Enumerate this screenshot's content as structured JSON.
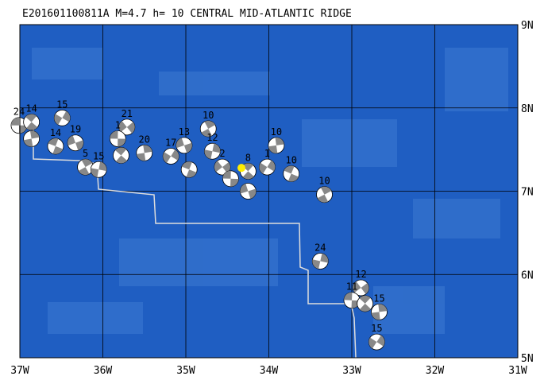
{
  "chart_data": {
    "type": "map",
    "title": "E201601100811A M=4.7 h= 10 CENTRAL MID-ATLANTIC RIDGE",
    "xlim": [
      -37,
      -31
    ],
    "ylim": [
      5,
      9
    ],
    "xticks": [
      {
        "value": -37,
        "label": "37W"
      },
      {
        "value": -36,
        "label": "36W"
      },
      {
        "value": -35,
        "label": "35W"
      },
      {
        "value": -34,
        "label": "34W"
      },
      {
        "value": -33,
        "label": "33W"
      },
      {
        "value": -32,
        "label": "32W"
      },
      {
        "value": -31,
        "label": "31W"
      }
    ],
    "yticks": [
      {
        "value": 5,
        "label": "5N"
      },
      {
        "value": 6,
        "label": "6N"
      },
      {
        "value": 7,
        "label": "7N"
      },
      {
        "value": 8,
        "label": "8N"
      },
      {
        "value": 9,
        "label": "9N"
      }
    ],
    "grid": true,
    "main_event": {
      "lon": -34.33,
      "lat": 7.28,
      "color": "#ffee00"
    },
    "events": [
      {
        "lon": -37.01,
        "lat": 7.79,
        "label": "24"
      },
      {
        "lon": -36.86,
        "lat": 7.83,
        "label": "14"
      },
      {
        "lon": -36.86,
        "lat": 7.63,
        "label": null
      },
      {
        "lon": -36.49,
        "lat": 7.88,
        "label": "15"
      },
      {
        "lon": -36.33,
        "lat": 7.58,
        "label": "19"
      },
      {
        "lon": -36.57,
        "lat": 7.54,
        "label": "14"
      },
      {
        "lon": -36.21,
        "lat": 7.29,
        "label": "5"
      },
      {
        "lon": -36.05,
        "lat": 7.26,
        "label": "15"
      },
      {
        "lon": -35.71,
        "lat": 7.77,
        "label": "21"
      },
      {
        "lon": -35.82,
        "lat": 7.63,
        "label": "1"
      },
      {
        "lon": -35.78,
        "lat": 7.43,
        "label": null
      },
      {
        "lon": -35.5,
        "lat": 7.46,
        "label": "20"
      },
      {
        "lon": -35.18,
        "lat": 7.42,
        "label": "17"
      },
      {
        "lon": -35.02,
        "lat": 7.55,
        "label": "13"
      },
      {
        "lon": -34.96,
        "lat": 7.26,
        "label": null
      },
      {
        "lon": -34.73,
        "lat": 7.75,
        "label": "10"
      },
      {
        "lon": -34.68,
        "lat": 7.48,
        "label": "12"
      },
      {
        "lon": -34.56,
        "lat": 7.29,
        "label": "2"
      },
      {
        "lon": -34.46,
        "lat": 7.15,
        "label": null
      },
      {
        "lon": -34.25,
        "lat": 7.24,
        "label": "8"
      },
      {
        "lon": -33.91,
        "lat": 7.55,
        "label": "10"
      },
      {
        "lon": -34.02,
        "lat": 7.29,
        "label": "1"
      },
      {
        "lon": -34.25,
        "lat": 7.0,
        "label": null
      },
      {
        "lon": -33.73,
        "lat": 7.21,
        "label": "10"
      },
      {
        "lon": -33.33,
        "lat": 6.96,
        "label": "10"
      },
      {
        "lon": -33.38,
        "lat": 6.16,
        "label": "24"
      },
      {
        "lon": -32.89,
        "lat": 5.84,
        "label": "12"
      },
      {
        "lon": -33.0,
        "lat": 5.69,
        "label": "11"
      },
      {
        "lon": -32.84,
        "lat": 5.65,
        "label": null
      },
      {
        "lon": -32.67,
        "lat": 5.55,
        "label": "15"
      },
      {
        "lon": -32.7,
        "lat": 5.19,
        "label": "15"
      }
    ]
  }
}
